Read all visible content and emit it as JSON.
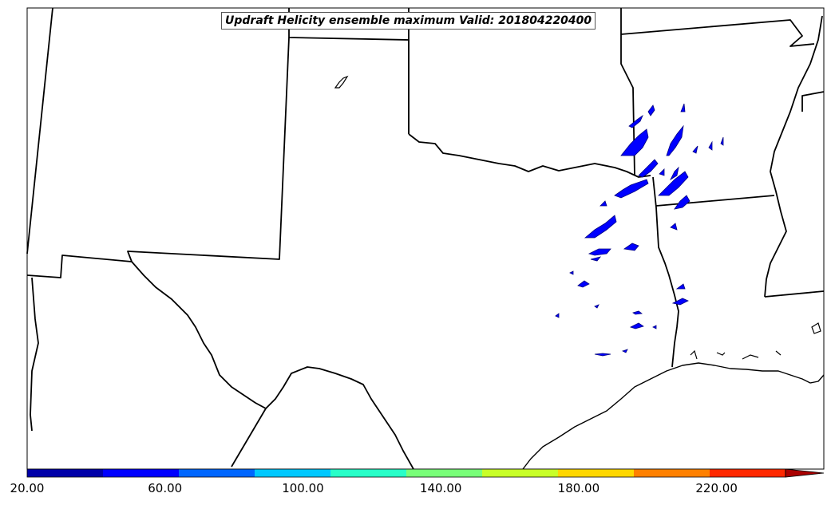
{
  "title": "Updraft Helicity ensemble maximum Valid: 201804220400",
  "colorbar": {
    "tick_labels": [
      "20.00",
      "60.00",
      "100.00",
      "140.00",
      "180.00",
      "220.00"
    ],
    "colors": [
      "#0000a8",
      "#0000ff",
      "#0066ff",
      "#00c8ff",
      "#28ffc8",
      "#78ff78",
      "#c8ff28",
      "#ffd700",
      "#ff8000",
      "#ff2800",
      "#aa0000"
    ],
    "extend": "max",
    "min": 20,
    "max": 240
  },
  "overlay": {
    "fill_color": "#0000ff",
    "edge_color": "#000080"
  }
}
